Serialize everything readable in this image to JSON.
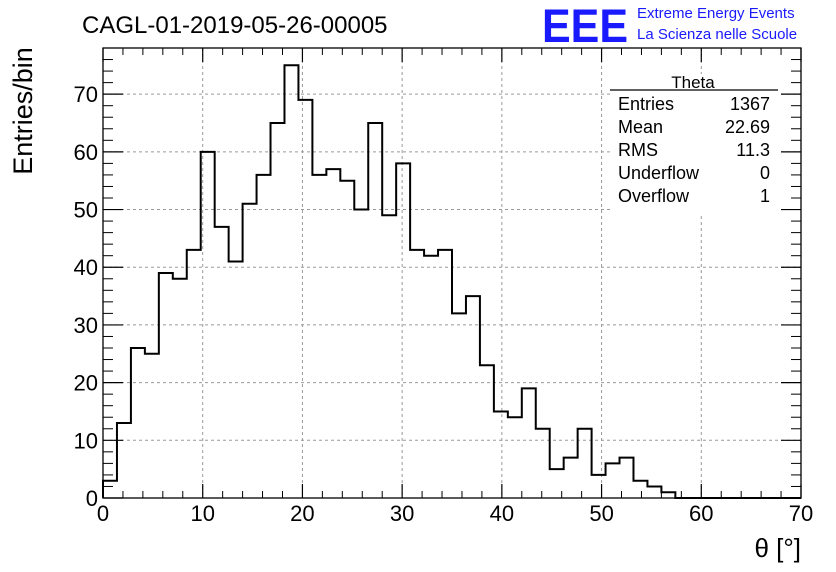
{
  "header": {
    "run_title": "CAGL-01-2019-05-26-00005",
    "logo_text": "EEE",
    "logo_line1": "Extreme Energy Events",
    "logo_line2": "La Scienza nelle Scuole",
    "logo_color": "#1a1aff"
  },
  "stats_box": {
    "title": "Theta",
    "rows": [
      {
        "label": "Entries",
        "value": "1367"
      },
      {
        "label": "Mean",
        "value": "22.69"
      },
      {
        "label": "RMS",
        "value": "11.3"
      },
      {
        "label": "Underflow",
        "value": "0"
      },
      {
        "label": "Overflow",
        "value": "1"
      }
    ]
  },
  "chart_data": {
    "type": "bar",
    "style": "step-histogram",
    "title": "CAGL-01-2019-05-26-00005",
    "xlabel": "θ [°]",
    "ylabel": "Entries/bin",
    "xlim": [
      0,
      70
    ],
    "ylim": [
      0,
      78
    ],
    "bin_width": 1.4,
    "grid": true,
    "xticks": [
      0,
      10,
      20,
      30,
      40,
      50,
      60,
      70
    ],
    "yticks": [
      0,
      10,
      20,
      30,
      40,
      50,
      60,
      70
    ],
    "values": [
      3,
      13,
      26,
      25,
      39,
      38,
      43,
      60,
      47,
      41,
      51,
      56,
      65,
      75,
      69,
      56,
      57,
      55,
      50,
      65,
      49,
      58,
      43,
      42,
      43,
      32,
      35,
      23,
      15,
      14,
      19,
      12,
      5,
      7,
      12,
      4,
      6,
      7,
      3,
      2,
      1,
      0,
      0,
      0,
      0,
      0,
      0,
      0,
      0,
      0
    ]
  }
}
